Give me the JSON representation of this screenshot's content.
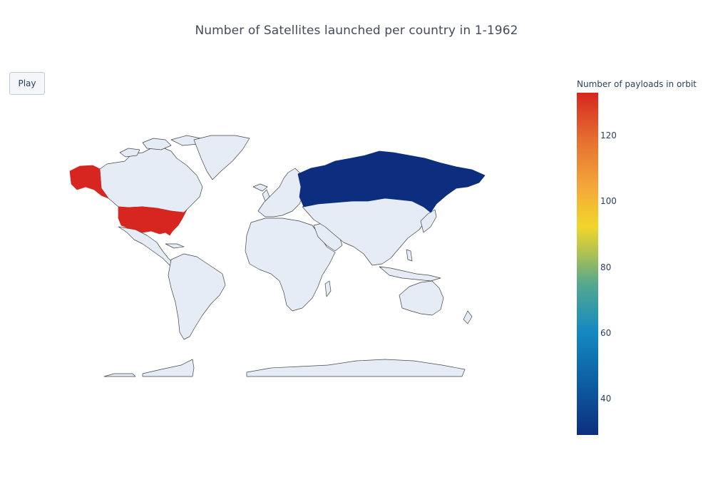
{
  "title": "Number of Satellites launched per country in 1-1962",
  "controls": {
    "play_label": "Play"
  },
  "colorbar": {
    "title": "Number of payloads in orbit",
    "min": 29,
    "max": 133,
    "ticks": [
      "40",
      "60",
      "80",
      "100",
      "120"
    ],
    "tick_values": [
      40,
      60,
      80,
      100,
      120
    ],
    "colorscale": [
      "#0d2e7e",
      "#0d5aa0",
      "#1389c2",
      "#54a88e",
      "#b7c44c",
      "#f2d52b",
      "#f4a53a",
      "#e56b2f",
      "#d7261f"
    ]
  },
  "map": {
    "projection": "miller",
    "land_color": "#e5ecf6",
    "border_color": "#444444",
    "regions": [
      {
        "name": "United States",
        "value": 133,
        "color": "#d7261f"
      },
      {
        "name": "Russia",
        "value": 29,
        "color": "#0d2e7e"
      }
    ]
  }
}
